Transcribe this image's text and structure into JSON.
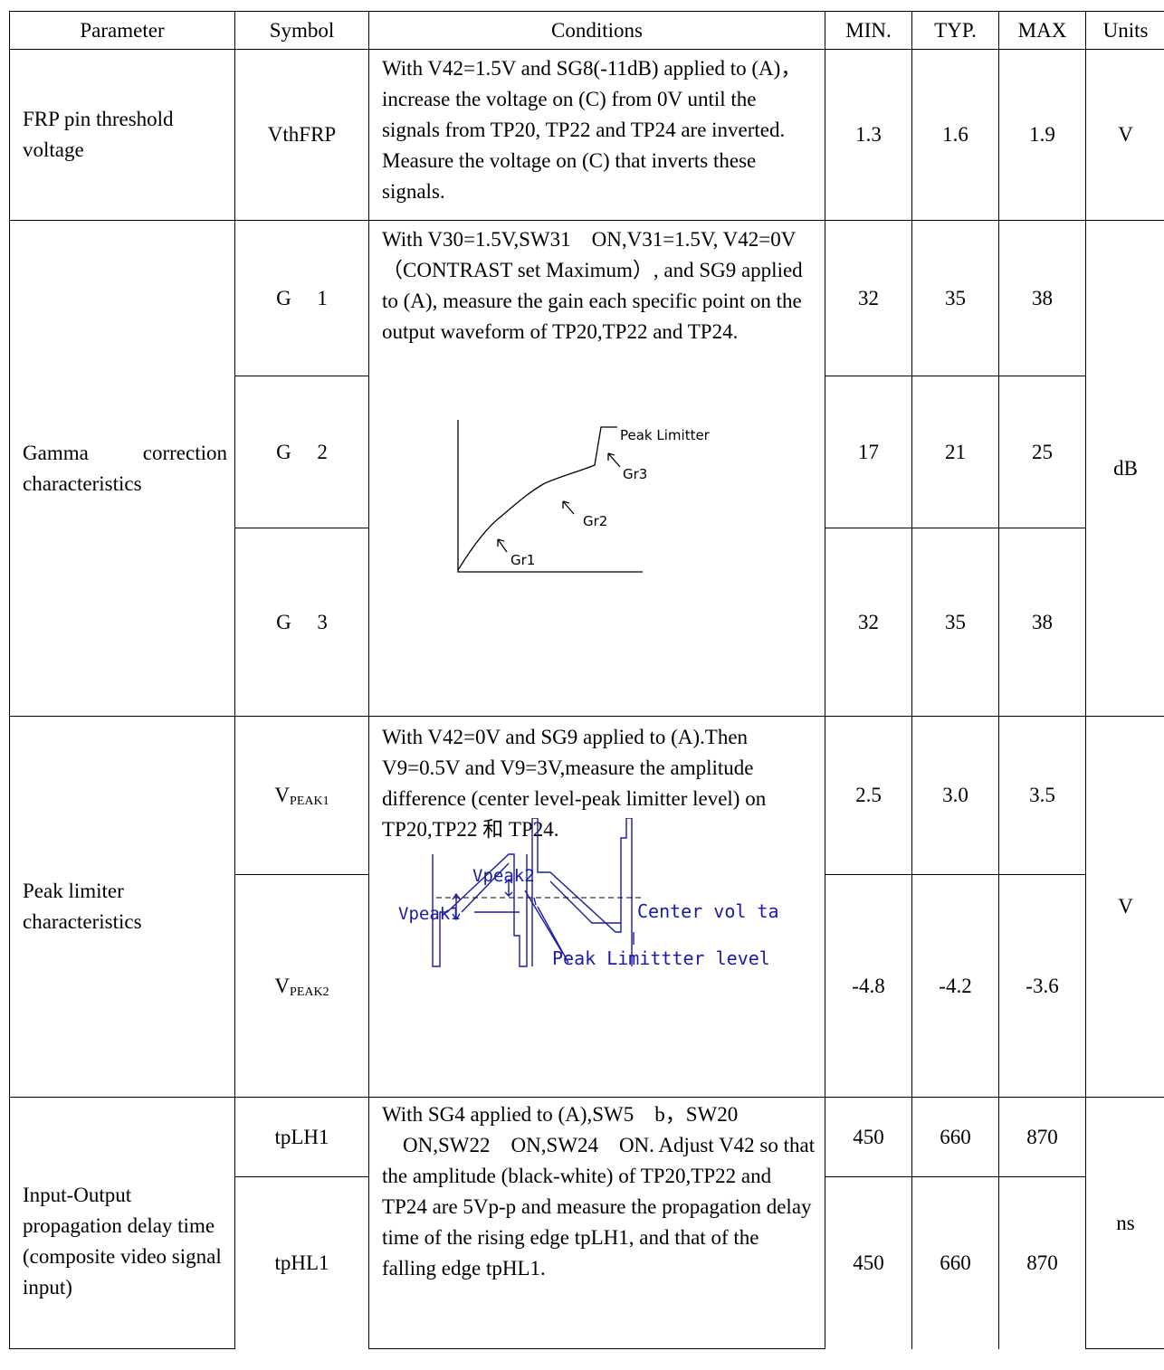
{
  "headers": {
    "parameter": "Parameter",
    "symbol": "Symbol",
    "conditions": "Conditions",
    "min": "MIN.",
    "typ": "TYP.",
    "max": "MAX",
    "units": "Units"
  },
  "rows": {
    "frp": {
      "parameter": "FRP pin threshold voltage",
      "symbol": "VthFRP",
      "conditions": "With V42=1.5V and SG8(-11dB) applied to (A)，increase the voltage on (C) from 0V until the signals from TP20, TP22 and TP24 are inverted. Measure the voltage on (C) that inverts these signals.",
      "min": "1.3",
      "typ": "1.6",
      "max": "1.9",
      "units": "V"
    },
    "gamma": {
      "parameter": "Gamma correction characteristics",
      "conditions": "With V30=1.5V,SW31　ON,V31=1.5V, V42=0V（CONTRAST set Maximum）, and SG9 applied to (A), measure the gain each specific point on the output waveform of TP20,TP22 and TP24.",
      "units": "dB",
      "figure": {
        "peak_limitter": "Peak Limitter",
        "gr1": "Gr1",
        "gr2": "Gr2",
        "gr3": "Gr3"
      },
      "sub": [
        {
          "symbol": "G　 1",
          "min": "32",
          "typ": "35",
          "max": "38"
        },
        {
          "symbol": "G　 2",
          "min": "17",
          "typ": "21",
          "max": "25"
        },
        {
          "symbol": "G　 3",
          "min": "32",
          "typ": "35",
          "max": "38"
        }
      ]
    },
    "peak": {
      "parameter": "Peak limiter characteristics",
      "conditions": "With V42=0V and SG9 applied to (A).Then V9=0.5V and V9=3V,measure the amplitude difference (center level-peak limitter level) on TP20,TP22 和 TP24.",
      "units": "V",
      "figure": {
        "vpeak1": "Vpeak1",
        "vpeak2": "Vpeak2",
        "center": "Center vol tage",
        "limit": "Peak Limittter level"
      },
      "sub": [
        {
          "symbol_main": "V",
          "symbol_sub": "PEAK1",
          "min": "2.5",
          "typ": "3.0",
          "max": "3.5"
        },
        {
          "symbol_main": "V",
          "symbol_sub": "PEAK2",
          "min": "-4.8",
          "typ": "-4.2",
          "max": "-3.6"
        }
      ]
    },
    "delay": {
      "parameter": "Input-Output propagation delay time (composite video signal input)",
      "conditions": "With SG4 applied to (A),SW5　b，SW20 　ON,SW22　ON,SW24　ON. Adjust V42 so that the amplitude (black-white) of TP20,TP22 and TP24 are 5Vp-p and measure the propagation delay time of the rising edge tpLH1, and that of the falling edge tpHL1.",
      "units": "ns",
      "sub": [
        {
          "symbol": "tpLH1",
          "min": "450",
          "typ": "660",
          "max": "870"
        },
        {
          "symbol": "tpHL1",
          "min": "450",
          "typ": "660",
          "max": "870"
        }
      ]
    }
  }
}
